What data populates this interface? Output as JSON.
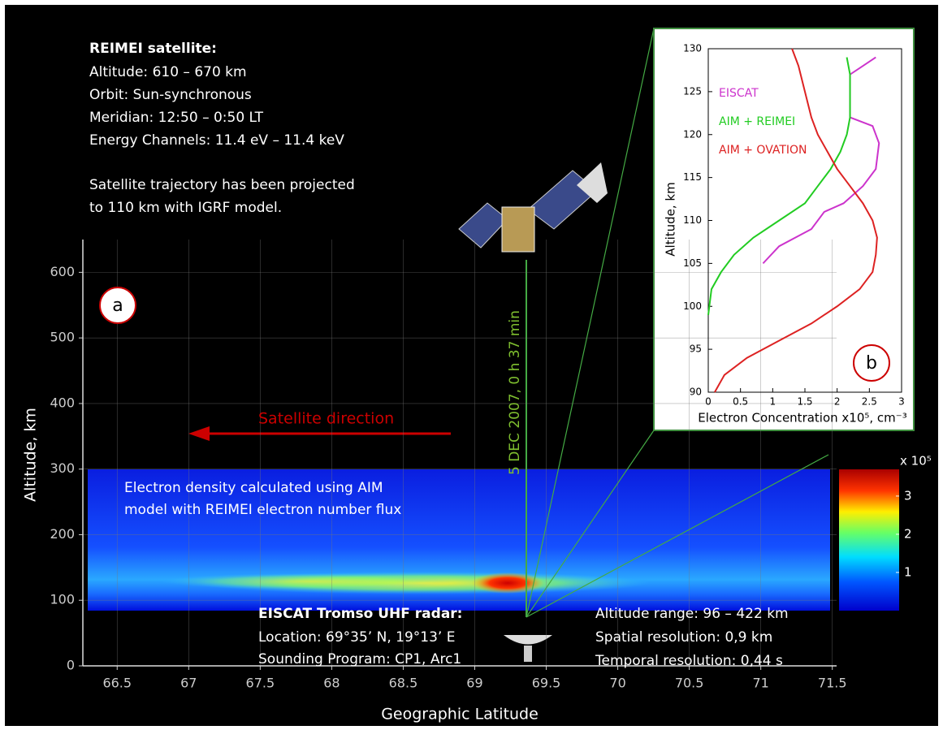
{
  "chart_data": [
    {
      "type": "heatmap",
      "panel_label": "a",
      "info_title": "REIMEI satellite:",
      "info_lines": [
        "Altitude: 610 – 670 km",
        "Orbit: Sun-synchronous",
        "Meridian: 12:50 – 0:50 LT",
        "Energy Channels:  11.4 eV – 11.4 keV"
      ],
      "note_lines": [
        "Satellite trajectory has been projected",
        "to 110 km with IGRF model."
      ],
      "direction_label": "Satellite direction",
      "time_label": "5 DEC 2007, 0 h 37 min",
      "heatmap_caption": [
        "Electron density calculated using AIM",
        "model with REIMEI electron number flux"
      ],
      "radar_title": "EISCAT Tromso UHF radar:",
      "radar_lines": [
        "Location: 69°35’ N, 19°13’ E",
        "Sounding Program: CP1, Arc1"
      ],
      "radar_specs": [
        "Altitude range: 96 – 422 km",
        "Spatial resolution:  0,9 km",
        "Temporal resolution: 0,44 s"
      ],
      "x_label": "Geographic Latitude",
      "y_label": "Altitude, km",
      "xlim": [
        66.26,
        71.53
      ],
      "ylim": [
        0,
        650
      ],
      "xticks": [
        66.5,
        67,
        67.5,
        68,
        68.5,
        69,
        69.5,
        70,
        70.5,
        71,
        71.5
      ],
      "yticks": [
        0,
        100,
        200,
        300,
        400,
        500,
        600
      ],
      "grid": true,
      "colorbar": {
        "label": "x 10⁵",
        "lim": [
          0,
          3.7
        ],
        "ticks": [
          1,
          2,
          3
        ]
      }
    },
    {
      "type": "line",
      "panel_label": "b",
      "x_label": "Electron Concentration x10⁵, cm⁻³",
      "y_label": "Altitude, km",
      "xlim": [
        0,
        3
      ],
      "ylim": [
        90,
        130
      ],
      "xticks": [
        0,
        0.5,
        1,
        1.5,
        2,
        2.5,
        3
      ],
      "yticks": [
        90,
        95,
        100,
        105,
        110,
        115,
        120,
        125,
        130
      ],
      "series": [
        {
          "name": "EISCAT",
          "color": "#cc33cc",
          "x": [
            0.85,
            1.1,
            1.6,
            1.8,
            2.1,
            2.4,
            2.6,
            2.65,
            2.55,
            2.2,
            2.2,
            2.2,
            2.4,
            2.6
          ],
          "values": [
            105,
            107,
            109,
            111,
            112,
            114,
            116,
            119,
            121,
            122,
            124,
            127,
            128,
            129
          ]
        },
        {
          "name": "AIM + REIMEI",
          "color": "#22cc22",
          "x": [
            0,
            0.05,
            0.2,
            0.4,
            0.7,
            1.1,
            1.5,
            1.7,
            1.9,
            2.05,
            2.15,
            2.2,
            2.2,
            2.2,
            2.15
          ],
          "values": [
            99,
            102,
            104,
            106,
            108,
            110,
            112,
            114,
            116,
            118,
            120,
            122,
            125,
            127,
            129
          ]
        },
        {
          "name": "AIM + OVATION",
          "color": "#dd2222",
          "x": [
            0.1,
            0.25,
            0.6,
            1.1,
            1.6,
            2.0,
            2.35,
            2.55,
            2.6,
            2.62,
            2.55,
            2.4,
            2.2,
            2.0,
            1.85,
            1.7,
            1.6,
            1.5,
            1.4,
            1.3
          ],
          "values": [
            90,
            92,
            94,
            96,
            98,
            100,
            102,
            104,
            106,
            108,
            110,
            112,
            114,
            116,
            118,
            120,
            122,
            125,
            128,
            130
          ]
        }
      ]
    }
  ]
}
